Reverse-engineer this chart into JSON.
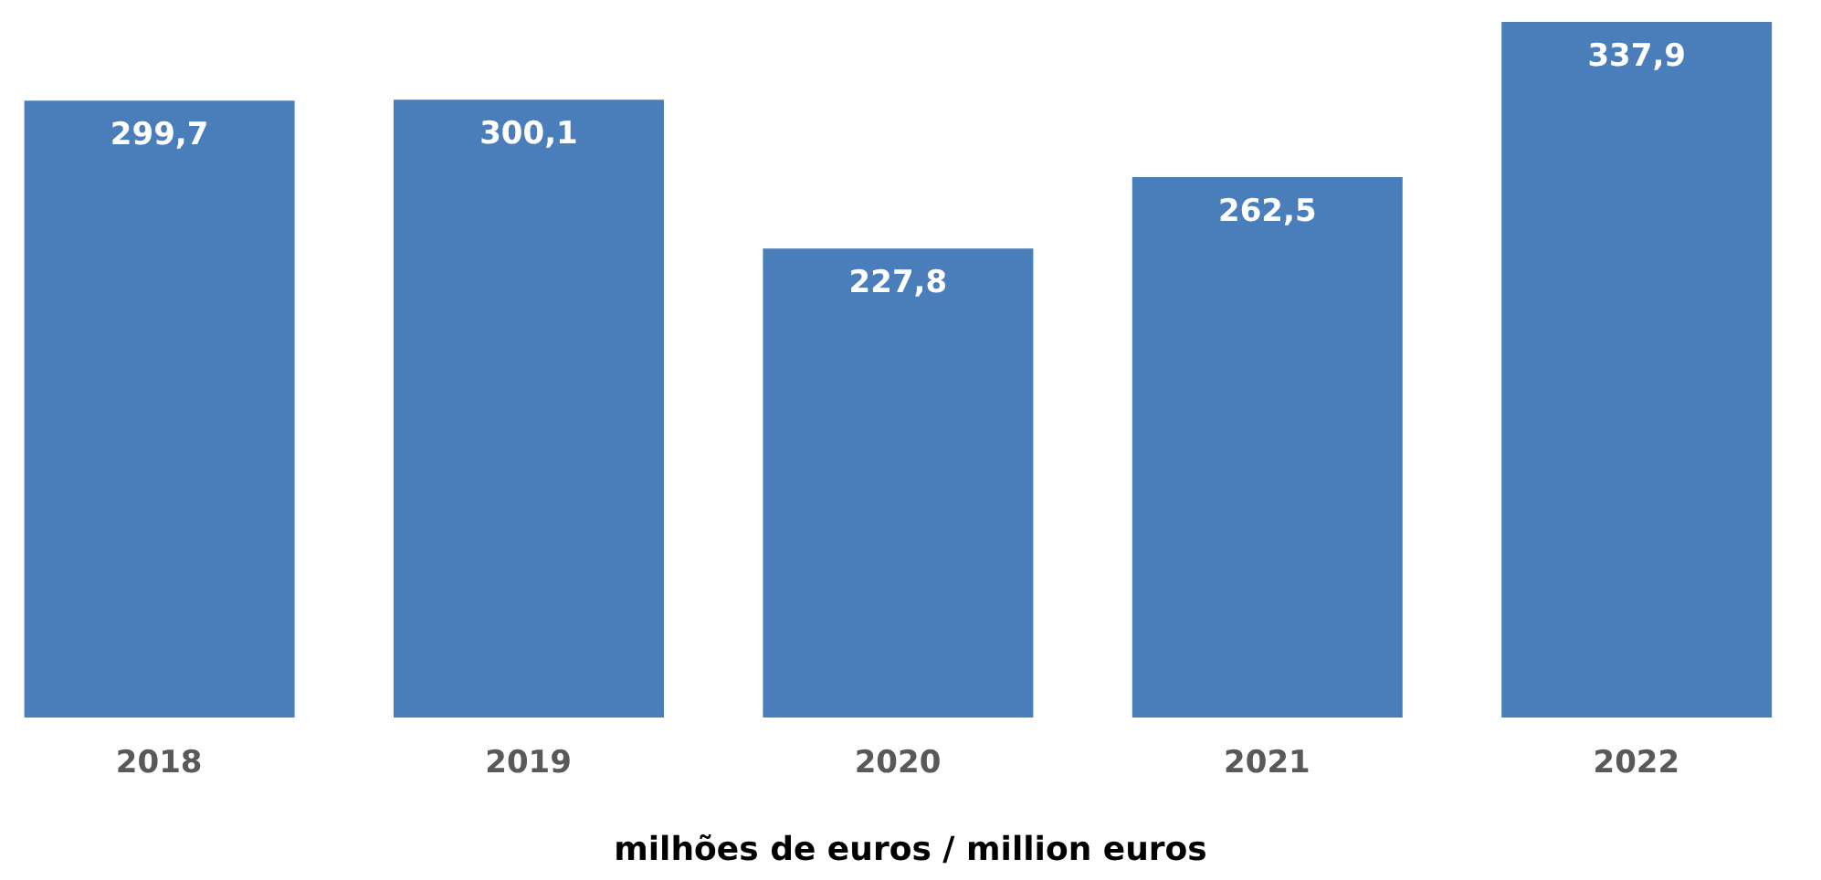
{
  "chart_data": {
    "type": "bar",
    "xlabel": "milhões de euros / million euros",
    "categories": [
      "2018",
      "2019",
      "2020",
      "2021",
      "2022"
    ],
    "values": [
      299.7,
      300.1,
      227.8,
      262.5,
      337.9
    ],
    "value_labels": [
      "299,7",
      "300,1",
      "227,8",
      "262,5",
      "337,9"
    ],
    "color": "#4a7ebb",
    "grid": false,
    "legend": false
  }
}
